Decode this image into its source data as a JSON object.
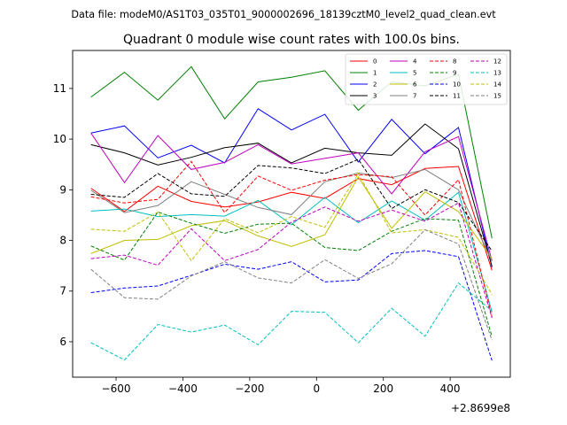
{
  "header_text": "Data file: modeM0/AS1T03_035T01_9000002696_18139cztM0_level2_quad_clean.evt",
  "chart_data": {
    "type": "line",
    "title": "Quadrant 0 module wise count rates with 100.0s bins.",
    "xlabel": "",
    "ylabel": "",
    "x_offset_label": "+2.8699e8",
    "x": [
      -675,
      -575,
      -475,
      -375,
      -275,
      -175,
      -75,
      25,
      125,
      225,
      325,
      425,
      525
    ],
    "xlim": [
      -730,
      580
    ],
    "ylim": [
      5.3,
      11.75
    ],
    "xticks": [
      -600,
      -400,
      -200,
      0,
      200,
      400
    ],
    "xtick_labels": [
      "−600",
      "−400",
      "−200",
      "0",
      "200",
      "400"
    ],
    "yticks": [
      6,
      7,
      8,
      9,
      10,
      11
    ],
    "ytick_labels": [
      "6",
      "7",
      "8",
      "9",
      "10",
      "11"
    ],
    "grid": false,
    "legend_position": "top-right",
    "series": [
      {
        "name": "0",
        "color": "#ff0000",
        "dash": "solid",
        "values": [
          9.03,
          8.57,
          9.07,
          8.77,
          8.66,
          8.76,
          8.95,
          8.83,
          9.22,
          9.1,
          9.42,
          9.46,
          7.41
        ]
      },
      {
        "name": "1",
        "color": "#008000",
        "dash": "solid",
        "values": [
          10.83,
          11.32,
          10.77,
          11.43,
          10.4,
          11.13,
          11.22,
          11.35,
          10.57,
          11.13,
          11.05,
          11.28,
          8.04
        ]
      },
      {
        "name": "2",
        "color": "#0000ff",
        "dash": "solid",
        "values": [
          10.12,
          10.26,
          9.63,
          9.88,
          9.53,
          10.6,
          10.18,
          10.49,
          9.55,
          10.39,
          9.71,
          10.23,
          7.47
        ]
      },
      {
        "name": "3",
        "color": "#000000",
        "dash": "solid",
        "values": [
          9.89,
          9.73,
          9.49,
          9.64,
          9.83,
          9.92,
          9.53,
          9.82,
          9.73,
          9.68,
          10.3,
          9.81,
          7.49
        ]
      },
      {
        "name": "4",
        "color": "#bf00bf",
        "dash": "solid",
        "values": [
          10.12,
          9.14,
          10.07,
          9.4,
          9.54,
          9.89,
          9.51,
          9.62,
          9.73,
          8.92,
          9.75,
          10.05,
          7.6
        ]
      },
      {
        "name": "5",
        "color": "#00bfbf",
        "dash": "solid",
        "values": [
          8.58,
          8.62,
          8.47,
          8.51,
          8.48,
          8.79,
          8.31,
          8.85,
          8.35,
          8.78,
          8.4,
          8.95,
          6.59
        ]
      },
      {
        "name": "6",
        "color": "#bfbf00",
        "dash": "solid",
        "values": [
          7.74,
          8.0,
          8.02,
          8.29,
          8.39,
          8.09,
          7.88,
          8.11,
          9.25,
          8.24,
          8.96,
          8.57,
          7.64
        ]
      },
      {
        "name": "7",
        "color": "#808080",
        "dash": "solid",
        "values": [
          8.99,
          8.55,
          8.69,
          9.16,
          8.91,
          8.65,
          8.51,
          9.16,
          9.33,
          9.24,
          9.4,
          9.0,
          7.59
        ]
      },
      {
        "name": "8",
        "color": "#ff0000",
        "dash": "dashed",
        "values": [
          8.86,
          8.74,
          8.81,
          9.56,
          8.55,
          9.27,
          8.99,
          9.19,
          9.3,
          9.26,
          8.5,
          9.2,
          6.49
        ]
      },
      {
        "name": "9",
        "color": "#008000",
        "dash": "dashed",
        "values": [
          7.89,
          7.61,
          8.56,
          8.34,
          8.14,
          8.32,
          8.34,
          7.86,
          7.8,
          8.18,
          8.43,
          8.4,
          6.1
        ]
      },
      {
        "name": "10",
        "color": "#0000ff",
        "dash": "dashed",
        "values": [
          6.97,
          7.06,
          7.1,
          7.31,
          7.53,
          7.43,
          7.58,
          7.18,
          7.22,
          7.74,
          7.8,
          7.68,
          5.63
        ]
      },
      {
        "name": "11",
        "color": "#000000",
        "dash": "dashed",
        "values": [
          8.91,
          8.85,
          9.32,
          8.92,
          8.87,
          9.48,
          9.43,
          9.32,
          9.6,
          8.63,
          9.0,
          8.75,
          7.79
        ]
      },
      {
        "name": "12",
        "color": "#bf00bf",
        "dash": "dashed",
        "values": [
          7.64,
          7.71,
          7.51,
          8.23,
          7.6,
          7.82,
          8.36,
          8.66,
          8.38,
          8.6,
          8.38,
          8.74,
          6.47
        ]
      },
      {
        "name": "13",
        "color": "#00bfbf",
        "dash": "dashed",
        "values": [
          5.98,
          5.64,
          6.34,
          6.19,
          6.33,
          5.94,
          6.6,
          6.58,
          5.98,
          6.66,
          6.11,
          7.16,
          6.61
        ]
      },
      {
        "name": "14",
        "color": "#bfbf00",
        "dash": "dashed",
        "values": [
          8.22,
          8.18,
          8.56,
          7.6,
          8.43,
          8.15,
          8.47,
          8.26,
          9.32,
          8.15,
          8.21,
          8.06,
          6.93
        ]
      },
      {
        "name": "15",
        "color": "#808080",
        "dash": "dashed",
        "values": [
          7.43,
          6.87,
          6.84,
          7.3,
          7.58,
          7.26,
          7.16,
          7.62,
          7.25,
          7.54,
          8.21,
          7.93,
          6.03
        ]
      }
    ]
  }
}
